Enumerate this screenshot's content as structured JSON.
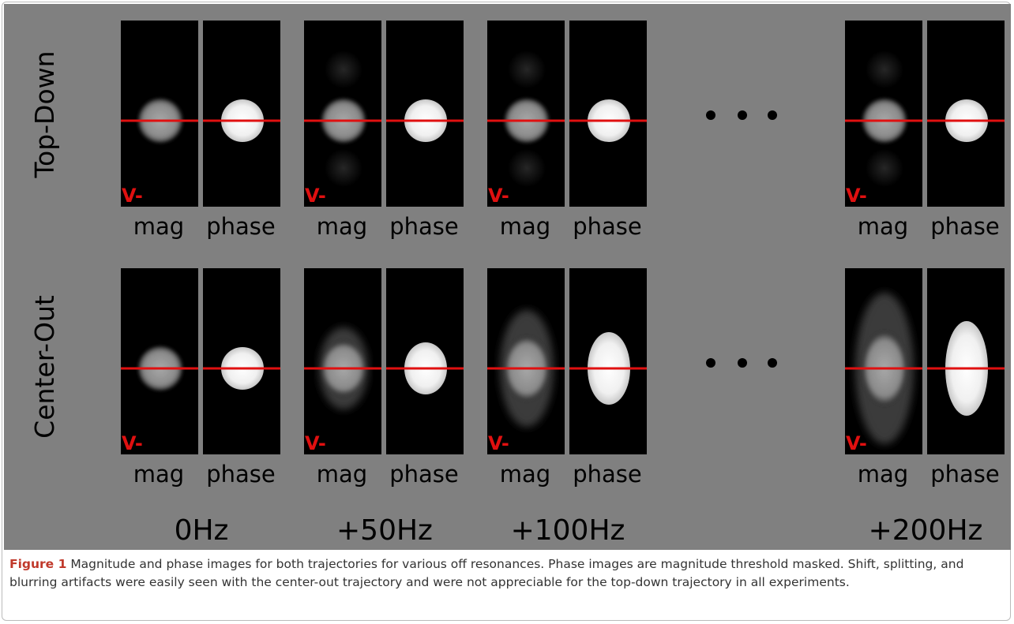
{
  "figure": {
    "rows": [
      "Top-Down",
      "Center-Out"
    ],
    "columns": [
      "0Hz",
      "+50Hz",
      "+100Hz",
      "+200Hz"
    ],
    "image_labels": [
      "mag",
      "phase"
    ],
    "marker": "V-"
  },
  "caption": {
    "label": "Figure 1",
    "text": "Magnitude and phase images for both trajectories for various off resonances. Phase images are magnitude threshold masked. Shift, splitting, and blurring artifacts were easily seen with the center-out trajectory and were not appreciable for the top-down trajectory in all experiments."
  }
}
